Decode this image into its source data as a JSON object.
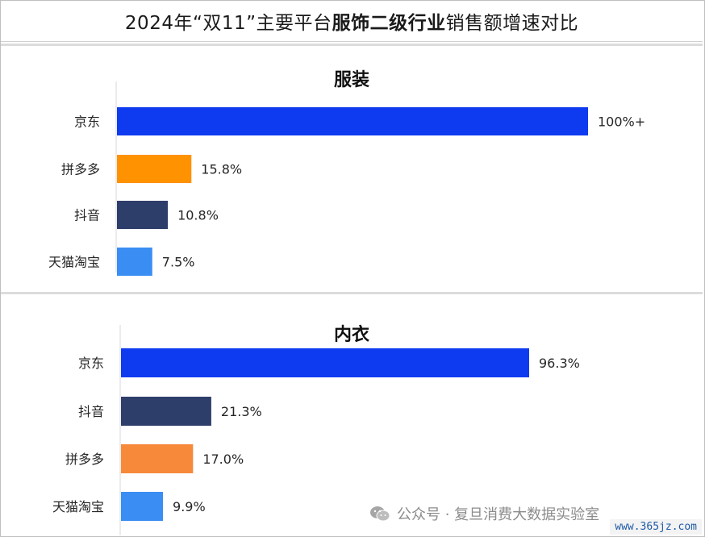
{
  "title": {
    "prefix": "2024年“双11”主要平台",
    "bold": "服饰二级行业",
    "suffix": "销售额增速对比"
  },
  "watermark": {
    "text": "公众号 · 复旦消费大数据实验室",
    "icon": "wechat-icon"
  },
  "site_label": "www.365jz.com",
  "colors": {
    "jd": "#0e3bef",
    "pdd_clothing": "#ff9200",
    "pdd_underwear": "#f7893b",
    "douyin": "#2e3e6b",
    "tmall": "#3a8ef3"
  },
  "chart_data": [
    {
      "type": "bar",
      "orientation": "horizontal",
      "title": "服装",
      "categories": [
        "京东",
        "拼多多",
        "抖音",
        "天猫淘宝"
      ],
      "values": [
        100,
        15.8,
        10.8,
        7.5
      ],
      "labels": [
        "100%+",
        "15.8%",
        "10.8%",
        "7.5%"
      ],
      "colors": [
        "#0e3bef",
        "#ff9200",
        "#2e3e6b",
        "#3a8ef3"
      ],
      "xlim": [
        0,
        100
      ],
      "grid": false
    },
    {
      "type": "bar",
      "orientation": "horizontal",
      "title": "内衣",
      "categories": [
        "京东",
        "抖音",
        "拼多多",
        "天猫淘宝"
      ],
      "values": [
        96.3,
        21.3,
        17.0,
        9.9
      ],
      "labels": [
        "96.3%",
        "21.3%",
        "17.0%",
        "9.9%"
      ],
      "colors": [
        "#0e3bef",
        "#2e3e6b",
        "#f7893b",
        "#3a8ef3"
      ],
      "xlim": [
        0,
        96.3
      ],
      "grid": false
    }
  ]
}
